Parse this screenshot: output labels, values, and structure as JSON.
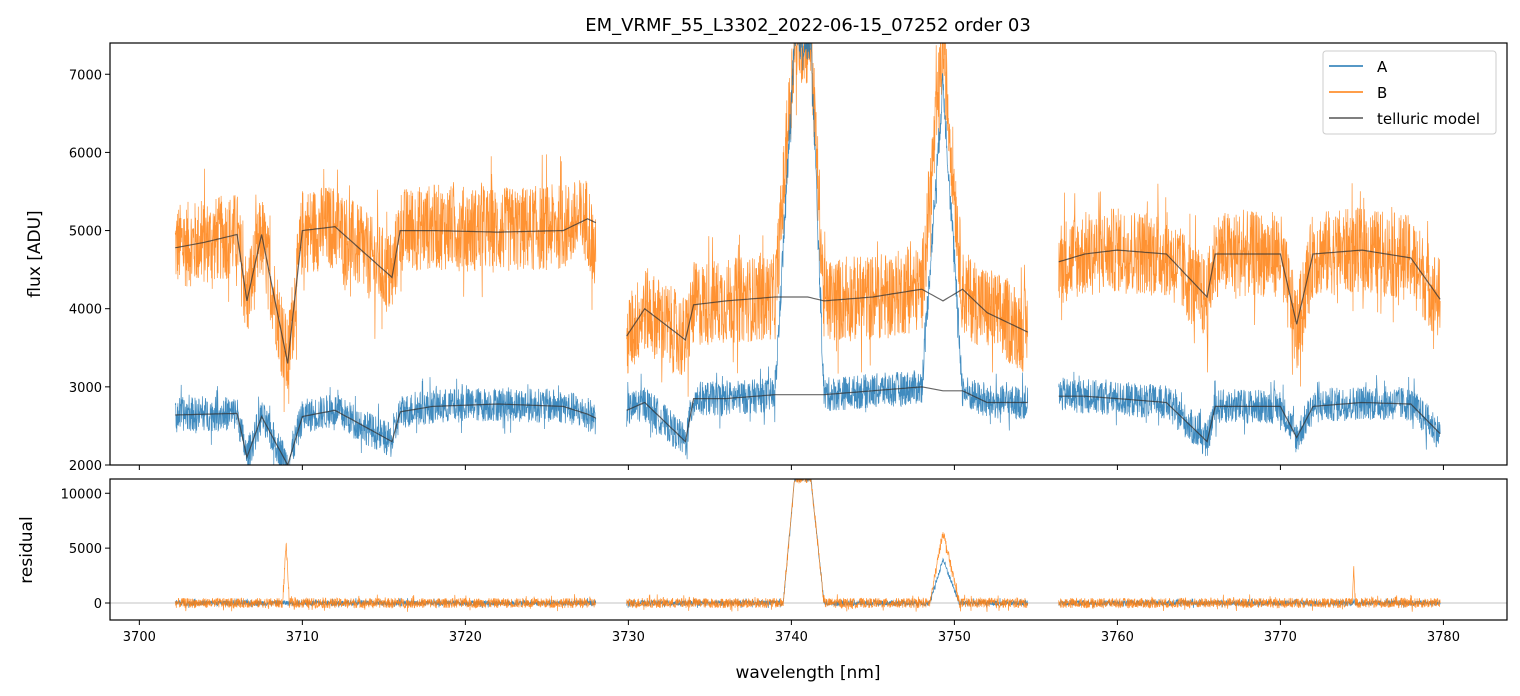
{
  "chart_data": [
    {
      "type": "line",
      "title": "EM_VRMF_55_L3302_2022-06-15_07252  order 03",
      "xlabel": "",
      "ylabel": "flux [ADU]",
      "xlim": [
        3698.2,
        3783.9
      ],
      "ylim": [
        2000,
        7400
      ],
      "yticks": [
        2000,
        3000,
        4000,
        5000,
        6000,
        7000
      ],
      "xticks": [
        3700,
        3710,
        3720,
        3730,
        3740,
        3750,
        3760,
        3770,
        3780
      ],
      "legend": {
        "placement": "top-right",
        "entries": [
          "A",
          "B",
          "telluric model"
        ]
      },
      "colors": {
        "A": "#1f77b4",
        "B": "#ff7f0e",
        "telluric model": "#555555"
      },
      "series": [
        {
          "name": "A",
          "segments": [
            [
              [
                3702.2,
                2650
              ],
              [
                3704,
                2650
              ],
              [
                3706,
                2660
              ],
              [
                3706.6,
                2100
              ],
              [
                3707.5,
                2620
              ],
              [
                3709.1,
                2000
              ],
              [
                3710,
                2620
              ],
              [
                3712,
                2700
              ],
              [
                3715.5,
                2300
              ],
              [
                3716,
                2680
              ],
              [
                3718,
                2750
              ],
              [
                3722,
                2780
              ],
              [
                3726,
                2750
              ],
              [
                3727.5,
                2650
              ],
              [
                3728,
                2600
              ]
            ],
            [
              [
                3729.9,
                2700
              ],
              [
                3731,
                2800
              ],
              [
                3733.5,
                2300
              ],
              [
                3734,
                2850
              ],
              [
                3736,
                2850
              ],
              [
                3739,
                2900
              ],
              [
                3740.2,
                7400
              ],
              [
                3741.2,
                7400
              ],
              [
                3742,
                2900
              ],
              [
                3745,
                2950
              ],
              [
                3748,
                3000
              ],
              [
                3749.3,
                6900
              ],
              [
                3750.5,
                2950
              ],
              [
                3752,
                2800
              ],
              [
                3754.5,
                2800
              ]
            ],
            [
              [
                3756.4,
                2900
              ],
              [
                3758,
                2880
              ],
              [
                3760,
                2850
              ],
              [
                3763,
                2800
              ],
              [
                3765.5,
                2300
              ],
              [
                3766,
                2750
              ],
              [
                3770,
                2750
              ],
              [
                3771,
                2350
              ],
              [
                3772,
                2750
              ],
              [
                3775,
                2800
              ],
              [
                3778,
                2780
              ],
              [
                3779.8,
                2400
              ]
            ]
          ]
        },
        {
          "name": "B",
          "segments": [
            [
              [
                3702.2,
                4800
              ],
              [
                3704,
                4850
              ],
              [
                3706,
                4950
              ],
              [
                3706.6,
                4100
              ],
              [
                3707.5,
                4950
              ],
              [
                3709.1,
                3300
              ],
              [
                3710,
                5000
              ],
              [
                3712,
                5050
              ],
              [
                3715.5,
                4400
              ],
              [
                3716,
                5000
              ],
              [
                3718,
                5050
              ],
              [
                3722,
                5000
              ],
              [
                3726,
                5050
              ],
              [
                3727.5,
                5150
              ],
              [
                3728,
                4600
              ]
            ],
            [
              [
                3729.9,
                3600
              ],
              [
                3731,
                4000
              ],
              [
                3733.5,
                3600
              ],
              [
                3734,
                4050
              ],
              [
                3736,
                4100
              ],
              [
                3739,
                4150
              ],
              [
                3740.2,
                7400
              ],
              [
                3741.2,
                7400
              ],
              [
                3742,
                4100
              ],
              [
                3745,
                4150
              ],
              [
                3748,
                4250
              ],
              [
                3749.3,
                7400
              ],
              [
                3750.5,
                4200
              ],
              [
                3752,
                4000
              ],
              [
                3754.5,
                3700
              ]
            ],
            [
              [
                3756.4,
                4600
              ],
              [
                3758,
                4700
              ],
              [
                3760,
                4750
              ],
              [
                3763,
                4700
              ],
              [
                3765.5,
                4100
              ],
              [
                3766,
                4700
              ],
              [
                3770,
                4700
              ],
              [
                3771,
                3700
              ],
              [
                3772,
                4700
              ],
              [
                3775,
                4750
              ],
              [
                3778,
                4650
              ],
              [
                3779.8,
                4100
              ]
            ]
          ]
        },
        {
          "name": "telluric model",
          "segments": [
            [
              [
                3702.2,
                4780
              ],
              [
                3704,
                4850
              ],
              [
                3706,
                4950
              ],
              [
                3706.6,
                4100
              ],
              [
                3707.5,
                4950
              ],
              [
                3709.1,
                3300
              ],
              [
                3710,
                5000
              ],
              [
                3712,
                5050
              ],
              [
                3715.5,
                4400
              ],
              [
                3716,
                5000
              ],
              [
                3718,
                5000
              ],
              [
                3722,
                4980
              ],
              [
                3726,
                5000
              ],
              [
                3727.5,
                5150
              ],
              [
                3728,
                5100
              ]
            ],
            [
              [
                3729.9,
                3650
              ],
              [
                3731,
                4000
              ],
              [
                3733.5,
                3600
              ],
              [
                3734,
                4050
              ],
              [
                3736,
                4100
              ],
              [
                3739,
                4150
              ],
              [
                3741,
                4150
              ],
              [
                3742,
                4100
              ],
              [
                3745,
                4150
              ],
              [
                3748,
                4250
              ],
              [
                3749.3,
                4100
              ],
              [
                3750.5,
                4250
              ],
              [
                3752,
                3950
              ],
              [
                3754.5,
                3700
              ]
            ],
            [
              [
                3756.4,
                4600
              ],
              [
                3758,
                4700
              ],
              [
                3760,
                4750
              ],
              [
                3763,
                4700
              ],
              [
                3765.5,
                4150
              ],
              [
                3766,
                4700
              ],
              [
                3770,
                4700
              ],
              [
                3771,
                3800
              ],
              [
                3772,
                4700
              ],
              [
                3775,
                4750
              ],
              [
                3778,
                4650
              ],
              [
                3779.8,
                4120
              ]
            ],
            [
              [
                3702.2,
                2640
              ],
              [
                3704,
                2650
              ],
              [
                3706,
                2660
              ],
              [
                3706.6,
                2100
              ],
              [
                3707.5,
                2620
              ],
              [
                3709.1,
                2000
              ],
              [
                3710,
                2620
              ],
              [
                3712,
                2700
              ],
              [
                3715.5,
                2300
              ],
              [
                3716,
                2680
              ],
              [
                3718,
                2750
              ],
              [
                3722,
                2780
              ],
              [
                3726,
                2750
              ],
              [
                3727.5,
                2650
              ],
              [
                3728,
                2600
              ]
            ],
            [
              [
                3729.9,
                2700
              ],
              [
                3731,
                2800
              ],
              [
                3733.5,
                2300
              ],
              [
                3734,
                2850
              ],
              [
                3736,
                2850
              ],
              [
                3739,
                2900
              ],
              [
                3741,
                2900
              ],
              [
                3742,
                2900
              ],
              [
                3745,
                2950
              ],
              [
                3748,
                3000
              ],
              [
                3749.3,
                2950
              ],
              [
                3750.5,
                2950
              ],
              [
                3752,
                2800
              ],
              [
                3754.5,
                2800
              ]
            ],
            [
              [
                3756.4,
                2880
              ],
              [
                3758,
                2880
              ],
              [
                3760,
                2850
              ],
              [
                3763,
                2800
              ],
              [
                3765.5,
                2300
              ],
              [
                3766,
                2750
              ],
              [
                3770,
                2750
              ],
              [
                3771,
                2350
              ],
              [
                3772,
                2750
              ],
              [
                3775,
                2800
              ],
              [
                3778,
                2780
              ],
              [
                3779.8,
                2400
              ]
            ]
          ]
        }
      ]
    },
    {
      "type": "line",
      "xlabel": "wavelength [nm]",
      "ylabel": "residual",
      "xlim": [
        3698.2,
        3783.9
      ],
      "ylim": [
        -1550,
        11300
      ],
      "yticks": [
        0,
        5000,
        10000
      ],
      "xticks": [
        3700,
        3710,
        3720,
        3730,
        3740,
        3750,
        3760,
        3770,
        3780
      ],
      "series": [
        {
          "name": "A",
          "segments": [
            [
              [
                3702.2,
                0
              ],
              [
                3728,
                0
              ]
            ],
            [
              [
                3729.9,
                0
              ],
              [
                3739.5,
                0
              ],
              [
                3740.2,
                11300
              ],
              [
                3741.2,
                11300
              ],
              [
                3742,
                0
              ],
              [
                3748.5,
                0
              ],
              [
                3749.3,
                4000
              ],
              [
                3750.3,
                0
              ],
              [
                3754.5,
                0
              ]
            ],
            [
              [
                3756.4,
                0
              ],
              [
                3779.8,
                0
              ]
            ]
          ]
        },
        {
          "name": "B",
          "segments": [
            [
              [
                3702.2,
                0
              ],
              [
                3708.8,
                0
              ],
              [
                3709.0,
                5600
              ],
              [
                3709.2,
                0
              ],
              [
                3728,
                0
              ]
            ],
            [
              [
                3729.9,
                0
              ],
              [
                3739.5,
                0
              ],
              [
                3740.2,
                11300
              ],
              [
                3741.2,
                11300
              ],
              [
                3742,
                0
              ],
              [
                3748.5,
                0
              ],
              [
                3749.3,
                6500
              ],
              [
                3750.3,
                0
              ],
              [
                3754.5,
                0
              ]
            ],
            [
              [
                3756.4,
                0
              ],
              [
                3774.4,
                0
              ],
              [
                3774.5,
                3300
              ],
              [
                3774.6,
                0
              ],
              [
                3779.8,
                0
              ]
            ]
          ]
        }
      ]
    }
  ]
}
